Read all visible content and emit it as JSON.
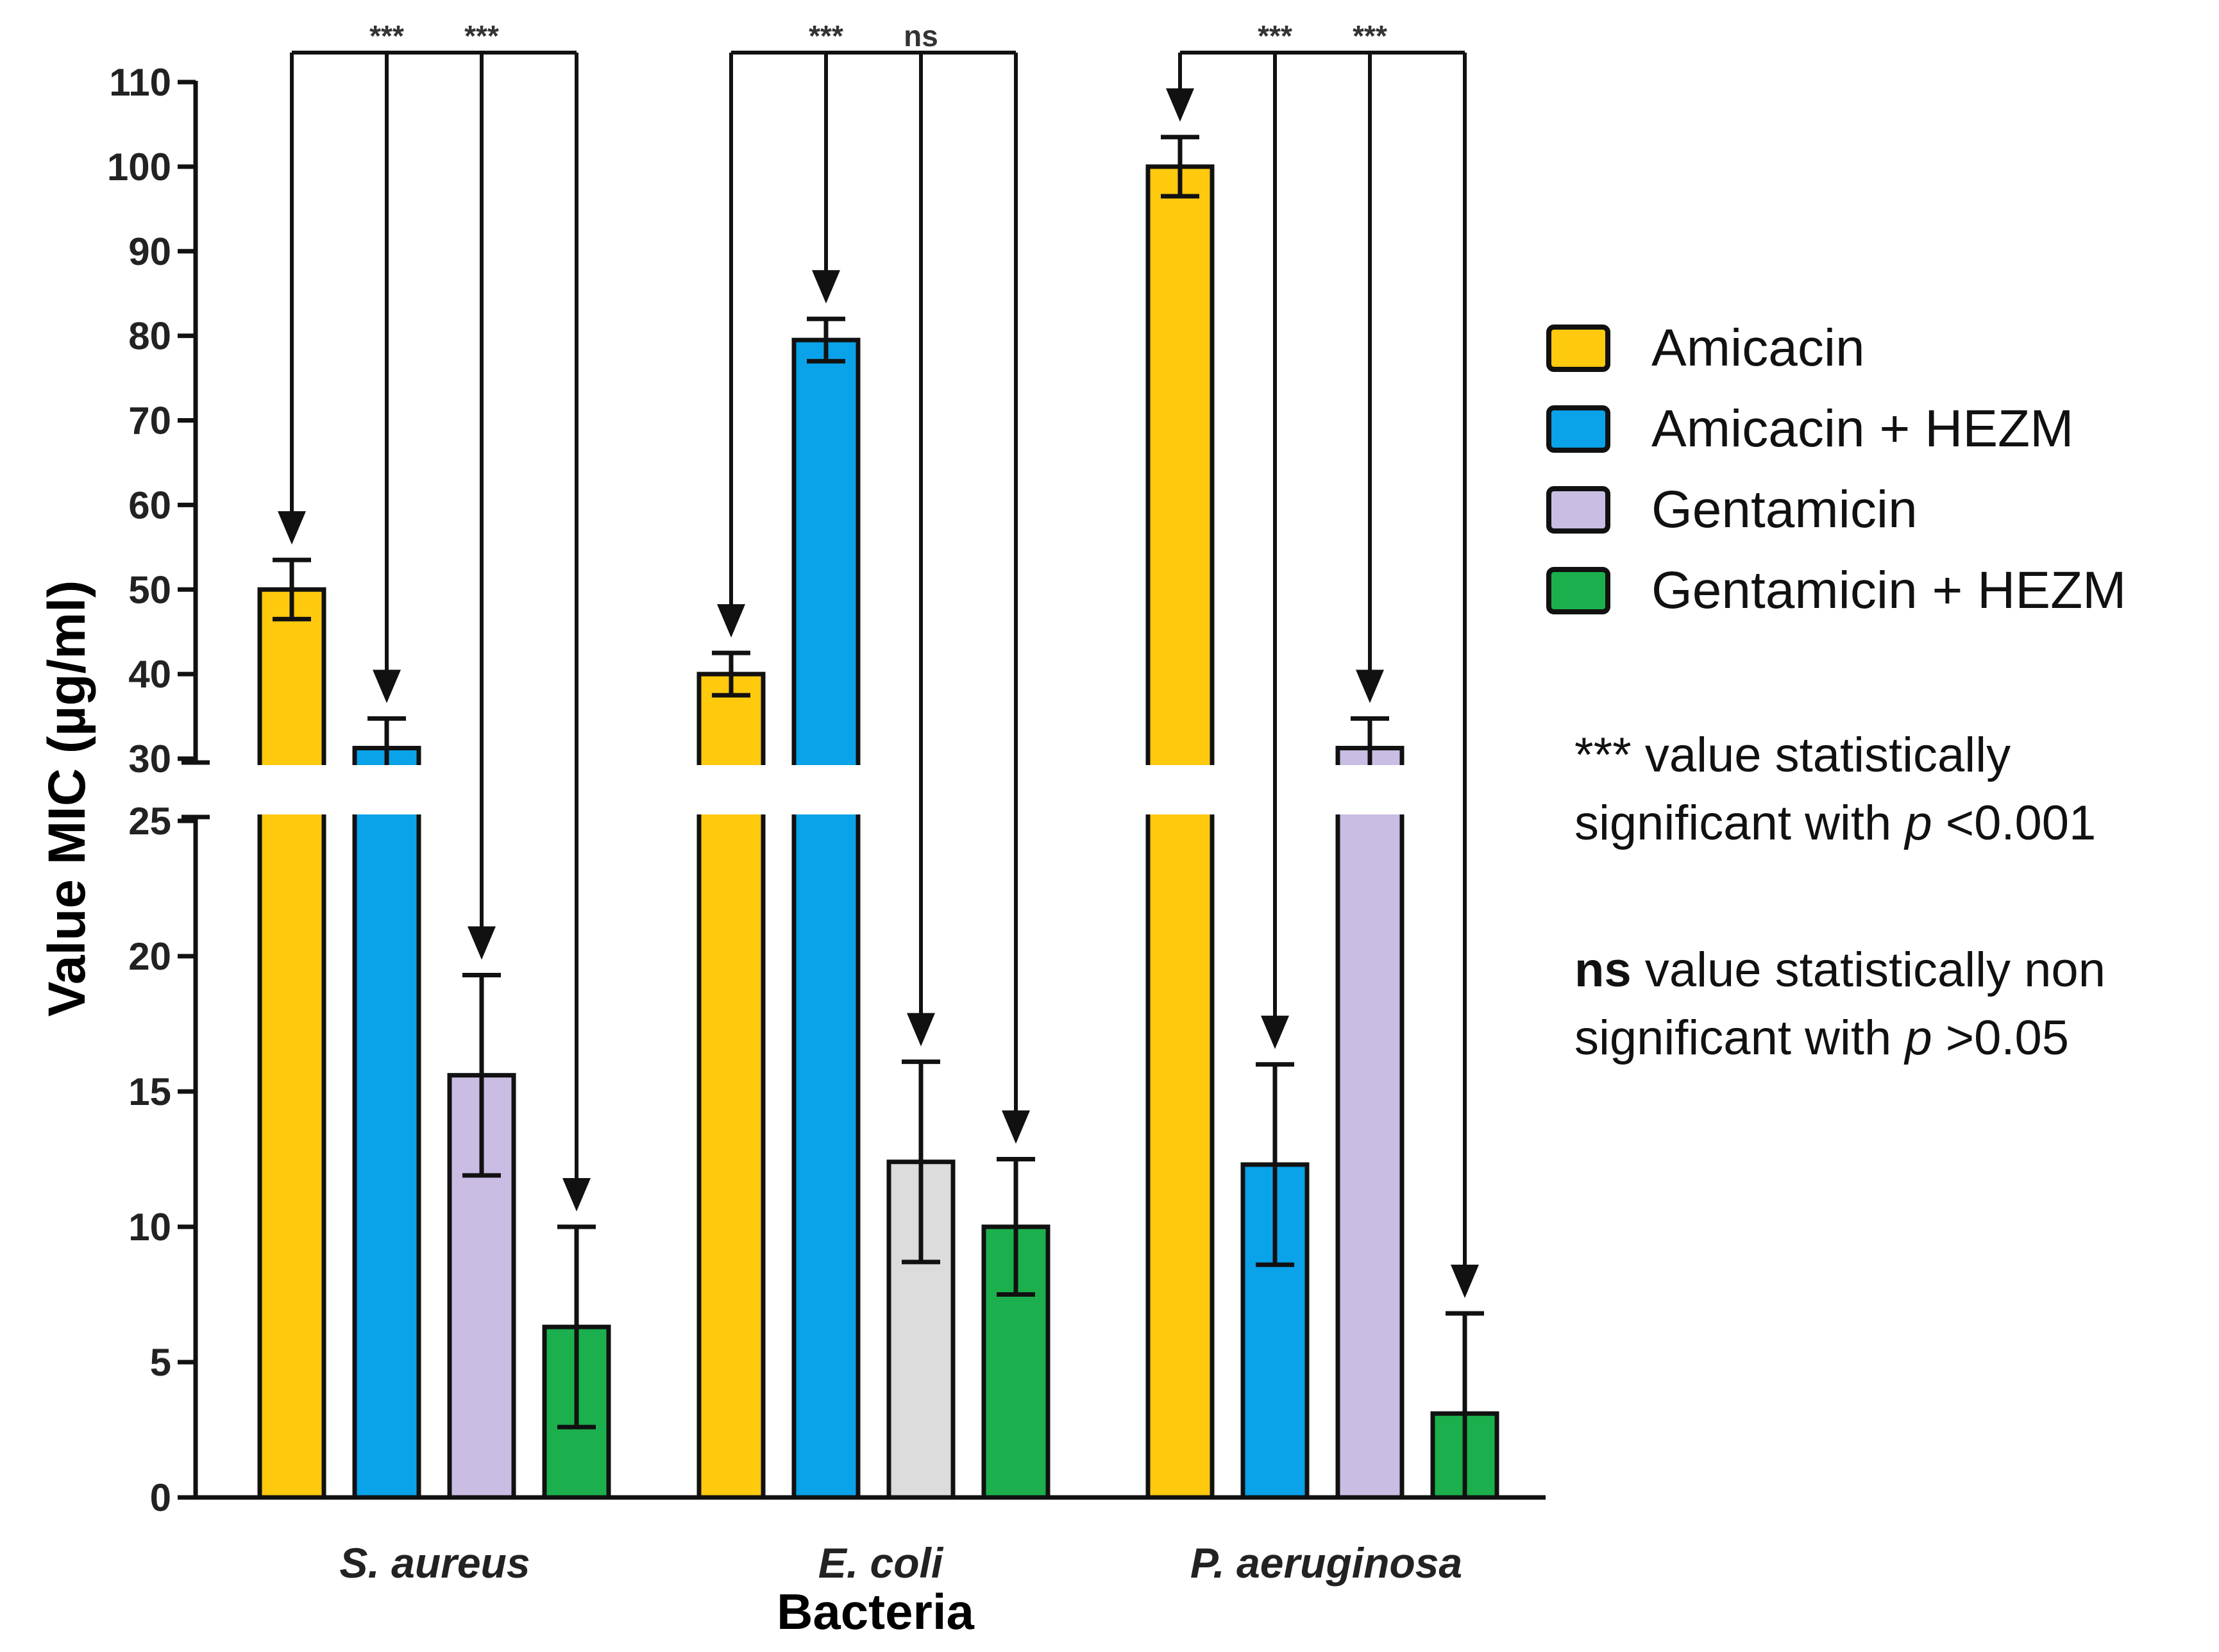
{
  "chart_data": {
    "type": "bar",
    "title": "",
    "xlabel": "Bacteria",
    "ylabel": "Value MIC (µg/ml)",
    "categories": [
      "S. aureus",
      "E. coli",
      "P. aeruginosa"
    ],
    "axis_break": {
      "lower_range": [
        0,
        25
      ],
      "upper_range": [
        30,
        110
      ]
    },
    "lower_ticks": [
      0,
      5,
      10,
      15,
      20,
      25
    ],
    "upper_ticks": [
      30,
      40,
      50,
      60,
      70,
      80,
      90,
      100,
      110
    ],
    "series": [
      {
        "name": "Amicacin",
        "color": "#FFC90E",
        "values": [
          50,
          40,
          100
        ],
        "errors": [
          3.5,
          2.5,
          3.5
        ]
      },
      {
        "name": "Amicacin + HEZM",
        "color": "#0AA2E8",
        "values": [
          31.25,
          79.5,
          12.3
        ],
        "errors": [
          3.5,
          2.5,
          3.7
        ]
      },
      {
        "name": "Gentamicin",
        "color": "#C9BDE3",
        "values": [
          15.6,
          12.4,
          31.25
        ],
        "errors": [
          3.7,
          3.7,
          3.5
        ],
        "bar_colors": [
          "#C9BDE3",
          "#DCDCDC",
          "#C9BDE3"
        ]
      },
      {
        "name": "Gentamicin + HEZM",
        "color": "#1BB04D",
        "values": [
          6.3,
          10,
          3.1
        ],
        "errors": [
          3.7,
          2.5,
          3.7
        ]
      }
    ],
    "comparisons": [
      {
        "group": 0,
        "from": 0,
        "to": 2,
        "label": "***"
      },
      {
        "group": 0,
        "from": 1,
        "to": 3,
        "label": "***"
      },
      {
        "group": 1,
        "from": 0,
        "to": 2,
        "label": "***"
      },
      {
        "group": 1,
        "from": 1,
        "to": 3,
        "label": "ns"
      },
      {
        "group": 2,
        "from": 0,
        "to": 2,
        "label": "***"
      },
      {
        "group": 2,
        "from": 1,
        "to": 3,
        "label": "***"
      }
    ],
    "legend": [
      "Amicacin",
      "Amicacin + HEZM",
      "Gentamicin",
      "Gentamicin + HEZM"
    ],
    "legend_position": "right"
  },
  "notes": {
    "sig_marker": "***",
    "sig_text_1": " value statistically",
    "sig_text_2": "significant with ",
    "sig_p": "p",
    "sig_threshold": " <0.001",
    "ns_marker": "ns",
    "ns_text_1": " value statistically non",
    "ns_text_2": "significant with ",
    "ns_p": "p",
    "ns_threshold": " >0.05"
  }
}
